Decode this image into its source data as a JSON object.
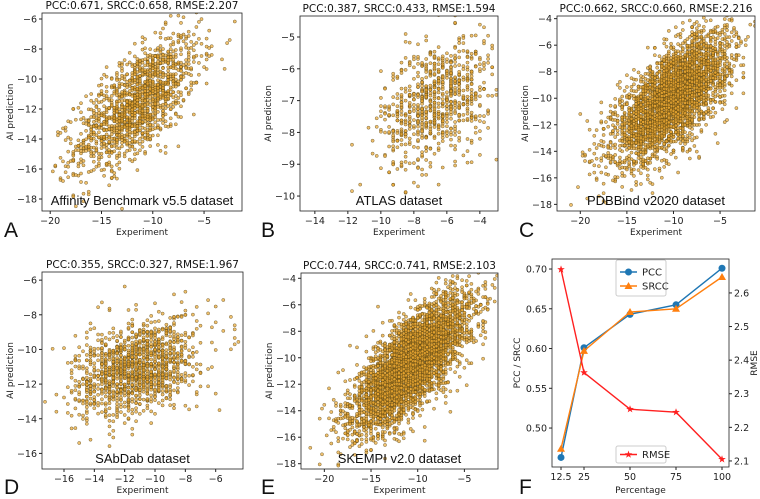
{
  "chart_data": [
    {
      "panel": "A",
      "type": "scatter",
      "title": "PCC:0.671, SRCC:0.658, RMSE:2.207",
      "dataset_label": "Affinity Benchmark v5.5 dataset",
      "xlabel": "Experiment",
      "ylabel": "AI prediction",
      "xlim": [
        -20.8,
        -1.3
      ],
      "ylim": [
        -18.8,
        -5.6
      ],
      "xticks": [
        -20,
        -15,
        -10,
        -5
      ],
      "yticks": [
        -18,
        -16,
        -14,
        -12,
        -10,
        -8,
        -6
      ],
      "approx_distribution": {
        "n": 1400,
        "x_mean": -11.5,
        "x_sd": 3.0,
        "y_mean": -11.6,
        "y_sd": 2.2,
        "r": 0.671
      }
    },
    {
      "panel": "B",
      "type": "scatter",
      "title": "PCC:0.387, SRCC:0.433, RMSE:1.594",
      "dataset_label": "ATLAS dataset",
      "xlabel": "Experiment",
      "ylabel": "AI prediction",
      "xlim": [
        -14.9,
        -2.9
      ],
      "ylim": [
        -10.47,
        -4.34
      ],
      "xticks": [
        -14,
        -12,
        -10,
        -8,
        -6,
        -4
      ],
      "yticks": [
        -10,
        -9,
        -8,
        -7,
        -6,
        -5
      ],
      "approx_distribution": {
        "n": 800,
        "x_mean": -6.6,
        "x_sd": 1.7,
        "y_mean": -7.0,
        "y_sd": 1.0,
        "r": 0.387
      }
    },
    {
      "panel": "C",
      "type": "scatter",
      "title": "PCC:0.662, SRCC:0.660, RMSE:2.216",
      "dataset_label": "PDBBind v2020 dataset",
      "xlabel": "Experiment",
      "ylabel": "AI prediction",
      "xlim": [
        -22.5,
        -1.25
      ],
      "ylim": [
        -18.5,
        -3.8
      ],
      "xticks": [
        -20,
        -15,
        -10,
        -5
      ],
      "yticks": [
        -18,
        -16,
        -14,
        -12,
        -10,
        -8,
        -6,
        -4
      ],
      "approx_distribution": {
        "n": 3500,
        "x_mean": -10.2,
        "x_sd": 3.0,
        "y_mean": -10.0,
        "y_sd": 2.3,
        "r": 0.662
      }
    },
    {
      "panel": "D",
      "type": "scatter",
      "title": "PCC:0.355, SRCC:0.327, RMSE:1.967",
      "dataset_label": "SAbDab dataset",
      "xlabel": "Experiment",
      "ylabel": "AI prediction",
      "xlim": [
        -17.45,
        -4.2
      ],
      "ylim": [
        -16.9,
        -5.53
      ],
      "xticks": [
        -16,
        -14,
        -12,
        -10,
        -8,
        -6
      ],
      "yticks": [
        -16,
        -14,
        -12,
        -10,
        -8,
        -6
      ],
      "approx_distribution": {
        "n": 1300,
        "x_mean": -11.2,
        "x_sd": 2.0,
        "y_mean": -11.1,
        "y_sd": 1.4,
        "r": 0.355
      }
    },
    {
      "panel": "E",
      "type": "scatter",
      "title": "PCC:0.744, SRCC:0.741, RMSE:2.103",
      "dataset_label": "SKEMPI v2.0 dataset",
      "xlabel": "Experiment",
      "ylabel": "AI prediction",
      "xlim": [
        -22.5,
        -1.4
      ],
      "ylim": [
        -18.4,
        -3.6
      ],
      "xticks": [
        -20,
        -15,
        -10,
        -5
      ],
      "yticks": [
        -18,
        -16,
        -14,
        -12,
        -10,
        -8,
        -6,
        -4
      ],
      "approx_distribution": {
        "n": 4000,
        "x_mean": -10.6,
        "x_sd": 3.1,
        "y_mean": -10.4,
        "y_sd": 2.5,
        "r": 0.744
      }
    },
    {
      "panel": "F",
      "type": "line",
      "xlabel": "Percentage",
      "ylabel": "PCC / SRCC",
      "ylabel_right": "RMSE",
      "x": [
        12.5,
        25,
        50,
        75,
        100
      ],
      "xtick_labels": [
        "12.5",
        "25",
        "50",
        "75",
        "100"
      ],
      "xlim": [
        7.6,
        103.8
      ],
      "ylim": [
        0.451,
        0.7126
      ],
      "ylim_right": [
        2.082,
        2.701
      ],
      "yticks": [
        0.5,
        0.55,
        0.6,
        0.65,
        0.7
      ],
      "ytick_labels": [
        "0.50",
        "0.55",
        "0.60",
        "0.65",
        "0.70"
      ],
      "yticks_right": [
        2.1,
        2.2,
        2.3,
        2.4,
        2.5,
        2.6
      ],
      "ytick_labels_right": [
        "2.1",
        "2.2",
        "2.3",
        "2.4",
        "2.5",
        "2.6"
      ],
      "series": [
        {
          "name": "PCC",
          "axis": "left",
          "marker": "circle",
          "color": "#1f77b4",
          "values": [
            0.463,
            0.601,
            0.643,
            0.655,
            0.701
          ]
        },
        {
          "name": "SRCC",
          "axis": "left",
          "marker": "triangle",
          "color": "#ff7f0e",
          "values": [
            0.474,
            0.597,
            0.646,
            0.65,
            0.69
          ]
        },
        {
          "name": "RMSE",
          "axis": "right",
          "marker": "star",
          "color": "#ff2020",
          "values": [
            2.67,
            2.363,
            2.254,
            2.245,
            2.105
          ]
        }
      ],
      "legend_left": "top-center",
      "legend_right": "bottom-center"
    }
  ],
  "colors": {
    "scatter_fill": "#e8a530",
    "scatter_edge": "#4a3a10"
  }
}
